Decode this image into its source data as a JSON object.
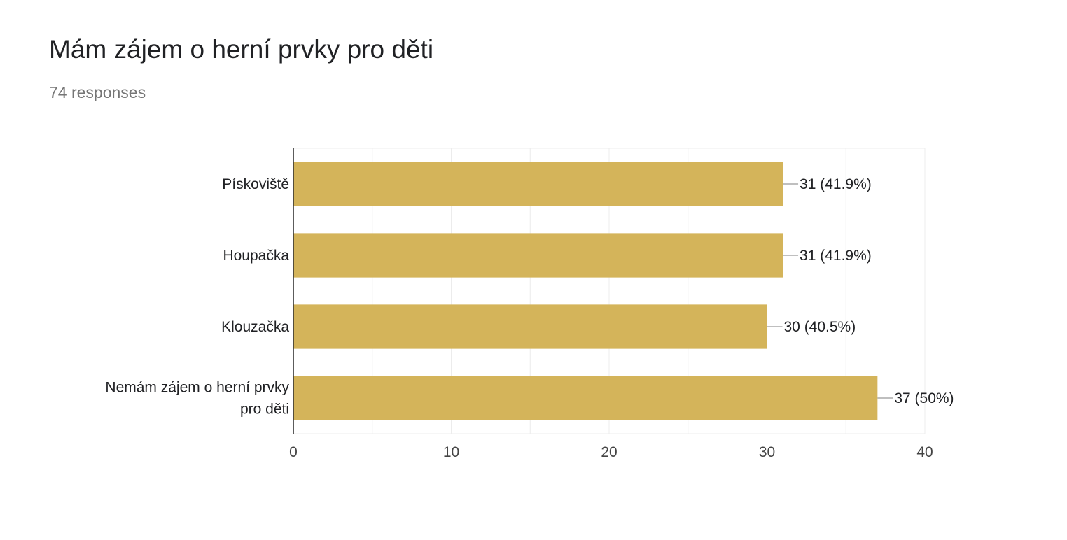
{
  "header": {
    "title": "Mám zájem o herní prvky pro děti",
    "responses": "74 responses"
  },
  "colors": {
    "bar": "#d4b45a",
    "grid": "#ececec",
    "axis": "#333333",
    "label": "#202124",
    "tick": "#444444",
    "leader": "#999999"
  },
  "chart_data": {
    "type": "bar",
    "orientation": "horizontal",
    "categories": [
      "Pískoviště",
      "Houpačka",
      "Klouzačka",
      "Nemám zájem o herní prvky pro děti"
    ],
    "category_lines": [
      [
        "Pískoviště"
      ],
      [
        "Houpačka"
      ],
      [
        "Klouzačka"
      ],
      [
        "Nemám zájem o herní prvky",
        "pro děti"
      ]
    ],
    "values": [
      31,
      31,
      30,
      37
    ],
    "data_labels": [
      "31 (41.9%)",
      "31 (41.9%)",
      "30 (40.5%)",
      "37 (50%)"
    ],
    "xlim": [
      0,
      40
    ],
    "xticks": [
      0,
      10,
      20,
      30,
      40
    ],
    "xtick_labels": [
      "0",
      "10",
      "20",
      "30",
      "40"
    ],
    "grid": true,
    "legend": "none"
  }
}
